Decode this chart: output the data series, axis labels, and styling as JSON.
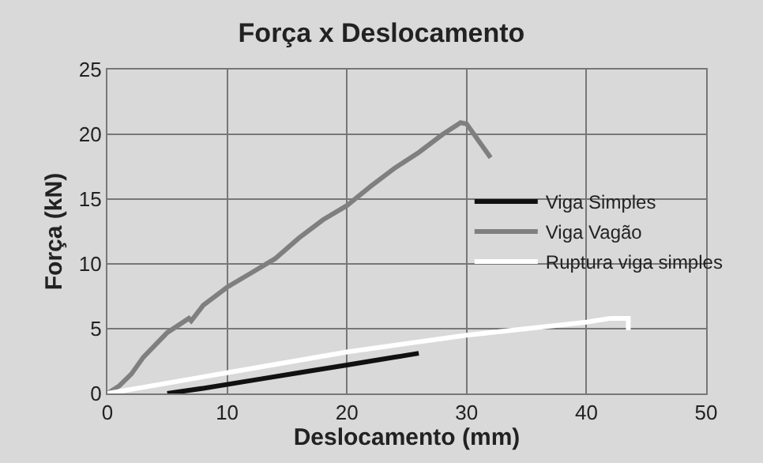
{
  "chart_data": {
    "type": "line",
    "title": "Força x Deslocamento",
    "xlabel": "Deslocamento (mm)",
    "ylabel": "Força (kN)",
    "xlim": [
      0,
      50
    ],
    "xticks": [
      0,
      10,
      20,
      30,
      40,
      50
    ],
    "ylim": [
      0,
      25
    ],
    "yticks": [
      0,
      5,
      10,
      15,
      20,
      25
    ],
    "grid": true,
    "legend": "right",
    "marker": "none",
    "series": [
      {
        "name": "Viga Simples",
        "color": "#111111",
        "x": [
          5,
          8,
          12,
          16,
          20,
          24,
          26
        ],
        "values": [
          0,
          0.4,
          1.0,
          1.6,
          2.2,
          2.8,
          3.1
        ]
      },
      {
        "name": "Viga Vagão",
        "color": "#7f7f7f",
        "x": [
          0,
          1,
          2,
          3,
          5,
          6.8,
          7,
          8,
          10,
          12,
          14,
          16,
          18,
          20,
          22,
          24,
          26,
          28,
          29.5,
          30,
          31,
          32
        ],
        "values": [
          0,
          0.6,
          1.5,
          2.8,
          4.7,
          5.8,
          5.6,
          6.8,
          8.2,
          9.3,
          10.4,
          12,
          13.4,
          14.5,
          16,
          17.4,
          18.6,
          20,
          20.9,
          20.8,
          19.5,
          18.2
        ]
      },
      {
        "name": "Ruptura viga simples",
        "color": "#ffffff",
        "x": [
          0,
          10,
          20,
          30,
          35,
          40,
          42,
          43.5,
          43.5
        ],
        "values": [
          0,
          1.6,
          3.2,
          4.5,
          5,
          5.5,
          5.8,
          5.8,
          4.9
        ]
      }
    ]
  }
}
